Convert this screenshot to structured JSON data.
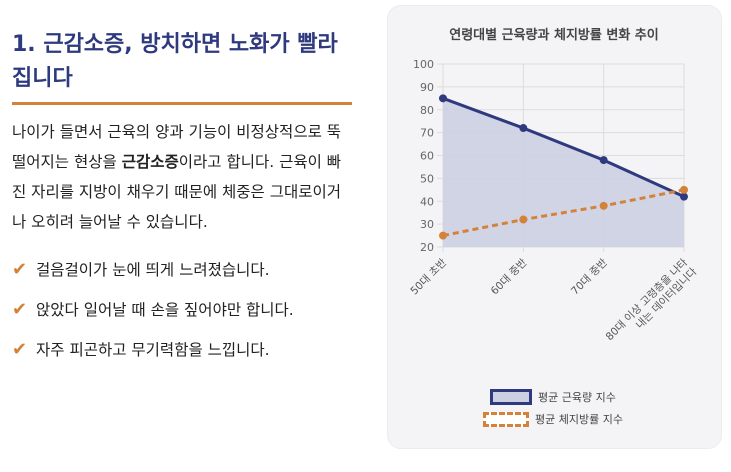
{
  "section": {
    "heading": "1. 근감소증, 방치하면 노화가 빨라집니다",
    "intro_before": "나이가 들면서 근육의 양과 기능이 비정상적으로 뚝 떨어지는 현상을 ",
    "intro_bold": "근감소증",
    "intro_after": "이라고 합니다. 근육이 빠진 자리를 지방이 채우기 때문에 체중은 그대로이거나 오히려 늘어날 수 있습니다.",
    "symptoms": [
      "걸음걸이가 눈에 띄게 느려졌습니다.",
      "앉았다 일어날 때 손을 짚어야만 합니다.",
      "자주 피곤하고 무기력함을 느낍니다."
    ]
  },
  "colors": {
    "heading": "#2f3a7e",
    "accent": "#d4823a",
    "muscle_line": "#2f3a7e",
    "muscle_fill": "#cdd0e3",
    "fat_line": "#d4823a"
  },
  "chart_data": {
    "type": "line",
    "title": "연령대별 근육량과 체지방률 변화 추이",
    "categories": [
      "50대 초반",
      "60대 중반",
      "70대 중반",
      "80대 이상 고령층을 나타내는 데이터입니다"
    ],
    "series": [
      {
        "name": "평균 근육량 지수",
        "values": [
          85,
          72,
          58,
          42
        ],
        "style": "solid",
        "area_fill": true
      },
      {
        "name": "평균 체지방률 지수",
        "values": [
          25,
          32,
          38,
          45
        ],
        "style": "dashed",
        "area_fill": false
      }
    ],
    "ylim": [
      20,
      100
    ],
    "yticks": [
      20,
      30,
      40,
      50,
      60,
      70,
      80,
      90,
      100
    ],
    "grid": true,
    "legend_position": "bottom"
  }
}
